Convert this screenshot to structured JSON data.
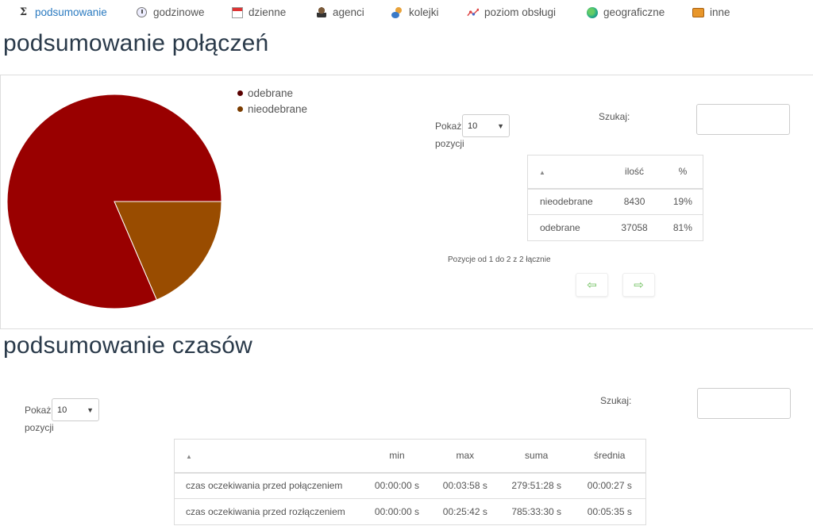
{
  "nav": {
    "items": [
      {
        "label": "podsumowanie",
        "icon": "sigma-icon",
        "active": true
      },
      {
        "label": "godzinowe",
        "icon": "clock-icon"
      },
      {
        "label": "dzienne",
        "icon": "calendar-icon"
      },
      {
        "label": "agenci",
        "icon": "agent-icon"
      },
      {
        "label": "kolejki",
        "icon": "queue-icon"
      },
      {
        "label": "poziom obsługi",
        "icon": "service-level-icon"
      },
      {
        "label": "geograficzne",
        "icon": "globe-icon"
      },
      {
        "label": "inne",
        "icon": "box-icon"
      }
    ]
  },
  "calls": {
    "title": "podsumowanie połączeń",
    "legend": [
      {
        "label": "odebrane",
        "color": "#990000"
      },
      {
        "label": "nieodebrane",
        "color": "#994c00"
      }
    ],
    "show_label": "Pokaż",
    "entries_label": "pozycji",
    "page_size": "10",
    "search_label": "Szukaj:",
    "search_value": "",
    "table": {
      "columns": [
        "",
        "ilość",
        "%"
      ],
      "rows": [
        {
          "name": "nieodebrane",
          "count": "8430",
          "pct": "19%"
        },
        {
          "name": "odebrane",
          "count": "37058",
          "pct": "81%"
        }
      ]
    },
    "info": "Pozycje od 1 do 2 z 2 łącznie",
    "prev_icon": "arrow-left-icon",
    "next_icon": "arrow-right-icon"
  },
  "chart_data": {
    "type": "pie",
    "slices": [
      {
        "label": "odebrane",
        "value": 37058,
        "color": "#990000"
      },
      {
        "label": "nieodebrane",
        "value": 8430,
        "color": "#994c00"
      }
    ]
  },
  "times": {
    "title": "podsumowanie czasów",
    "show_label": "Pokaż",
    "entries_label": "pozycji",
    "page_size": "10",
    "search_label": "Szukaj:",
    "search_value": "",
    "table": {
      "columns": [
        "",
        "min",
        "max",
        "suma",
        "średnia"
      ],
      "rows": [
        {
          "name": "czas oczekiwania przed połączeniem",
          "min": "00:00:00 s",
          "max": "00:03:58 s",
          "sum": "279:51:28 s",
          "avg": "00:00:27 s"
        },
        {
          "name": "czas oczekiwania przed rozłączeniem",
          "min": "00:00:00 s",
          "max": "00:25:42 s",
          "sum": "785:33:30 s",
          "avg": "00:05:35 s"
        }
      ]
    }
  }
}
